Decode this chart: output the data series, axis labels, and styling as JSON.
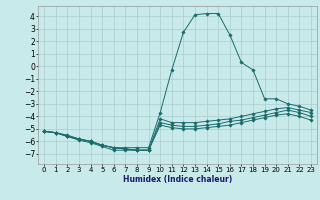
{
  "xlabel": "Humidex (Indice chaleur)",
  "bg_color": "#c8eaea",
  "grid_color": "#aacccc",
  "line_color": "#1a6b6b",
  "xlim": [
    -0.5,
    23.5
  ],
  "ylim": [
    -7.8,
    4.8
  ],
  "yticks": [
    -7,
    -6,
    -5,
    -4,
    -3,
    -2,
    -1,
    0,
    1,
    2,
    3,
    4
  ],
  "xticks": [
    0,
    1,
    2,
    3,
    4,
    5,
    6,
    7,
    8,
    9,
    10,
    11,
    12,
    13,
    14,
    15,
    16,
    17,
    18,
    19,
    20,
    21,
    22,
    23
  ],
  "series": [
    {
      "x": [
        0,
        1,
        2,
        3,
        4,
        5,
        6,
        7,
        8,
        9,
        10,
        11,
        12,
        13,
        14,
        15,
        16,
        17,
        18,
        19,
        20,
        21,
        22,
        23
      ],
      "y": [
        -5.2,
        -5.3,
        -5.5,
        -5.8,
        -6.0,
        -6.3,
        -6.5,
        -6.5,
        -6.5,
        -6.5,
        -3.7,
        -0.3,
        2.7,
        4.1,
        4.2,
        4.2,
        2.5,
        0.3,
        -0.3,
        -2.6,
        -2.6,
        -3.0,
        -3.2,
        -3.5
      ]
    },
    {
      "x": [
        0,
        1,
        2,
        3,
        4,
        5,
        6,
        7,
        8,
        9,
        10,
        11,
        12,
        13,
        14,
        15,
        16,
        17,
        18,
        19,
        20,
        21,
        22,
        23
      ],
      "y": [
        -5.2,
        -5.3,
        -5.6,
        -5.8,
        -6.0,
        -6.3,
        -6.5,
        -6.6,
        -6.7,
        -6.7,
        -4.2,
        -4.5,
        -4.5,
        -4.5,
        -4.4,
        -4.3,
        -4.2,
        -4.0,
        -3.8,
        -3.6,
        -3.4,
        -3.3,
        -3.5,
        -3.7
      ]
    },
    {
      "x": [
        0,
        1,
        2,
        3,
        4,
        5,
        6,
        7,
        8,
        9,
        10,
        11,
        12,
        13,
        14,
        15,
        16,
        17,
        18,
        19,
        20,
        21,
        22,
        23
      ],
      "y": [
        -5.2,
        -5.3,
        -5.6,
        -5.8,
        -6.0,
        -6.3,
        -6.5,
        -6.6,
        -6.7,
        -6.7,
        -4.5,
        -4.7,
        -4.8,
        -4.8,
        -4.7,
        -4.6,
        -4.4,
        -4.3,
        -4.1,
        -3.9,
        -3.7,
        -3.5,
        -3.7,
        -4.0
      ]
    },
    {
      "x": [
        0,
        1,
        2,
        3,
        4,
        5,
        6,
        7,
        8,
        9,
        10,
        11,
        12,
        13,
        14,
        15,
        16,
        17,
        18,
        19,
        20,
        21,
        22,
        23
      ],
      "y": [
        -5.2,
        -5.3,
        -5.6,
        -5.9,
        -6.1,
        -6.4,
        -6.7,
        -6.7,
        -6.7,
        -6.7,
        -4.7,
        -4.9,
        -5.0,
        -5.0,
        -4.9,
        -4.8,
        -4.7,
        -4.5,
        -4.3,
        -4.1,
        -3.9,
        -3.8,
        -4.0,
        -4.3
      ]
    }
  ]
}
